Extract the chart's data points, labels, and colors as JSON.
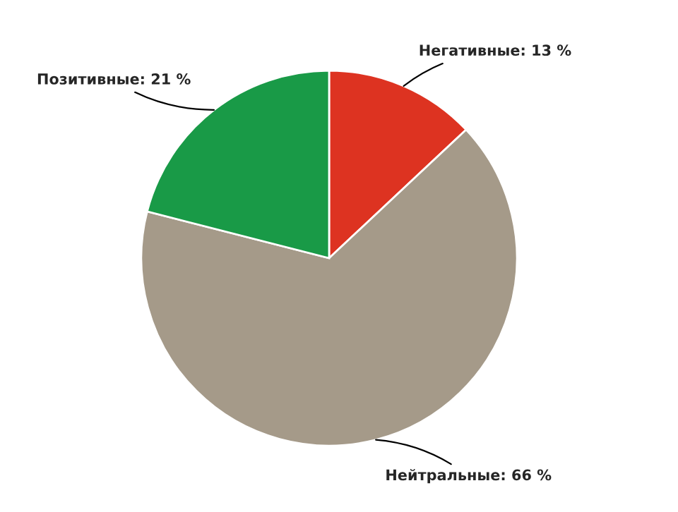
{
  "chart_data": {
    "type": "pie",
    "categories": [
      "Негативные",
      "Нейтральные",
      "Позитивные"
    ],
    "values": [
      13,
      66,
      21
    ],
    "value_labels": [
      "13 %",
      "66 %",
      "21 %"
    ],
    "colors": [
      "#dd3321",
      "#a59a89",
      "#199a47"
    ]
  }
}
